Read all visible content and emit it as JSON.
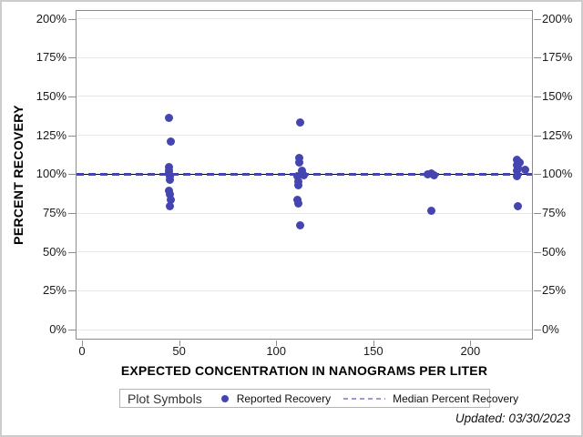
{
  "figure": {
    "footer_updated": "Updated: 03/30/2023"
  },
  "legend": {
    "title": "Plot Symbols",
    "items": [
      {
        "symbol": "filled-circle",
        "label": "Reported Recovery"
      },
      {
        "symbol": "dashed-line",
        "label": "Median Percent Recovery"
      }
    ]
  },
  "chart_data": {
    "type": "scatter",
    "title": "",
    "xlabel": "EXPECTED CONCENTRATION IN NANOGRAMS PER LITER",
    "ylabel": "PERCENT RECOVERY",
    "xlim": [
      -3.3,
      232.2
    ],
    "ylim": [
      -6.4,
      205.6
    ],
    "x_ticks": [
      0,
      50,
      100,
      150,
      200
    ],
    "y_ticks_percent": [
      0,
      25,
      50,
      75,
      100,
      125,
      150,
      175,
      200
    ],
    "y_tick_suffix": "%",
    "grid": "horizontal-only",
    "legend_position": "bottom",
    "y_axis_sides": [
      "left",
      "right"
    ],
    "marker_color": "#4545b2",
    "median_line_color": "#4545b2",
    "legend_dash_color": "#9a9ad4",
    "gridline_color": "#e8e8e8",
    "reference_line": {
      "y": 100,
      "color": "#000000",
      "style": "solid"
    },
    "median_line": {
      "y": 100,
      "style": "dashed",
      "name": "Median Percent Recovery"
    },
    "series": [
      {
        "name": "Reported Recovery",
        "points": [
          {
            "x": 45,
            "y": 136
          },
          {
            "x": 45.5,
            "y": 121
          },
          {
            "x": 45,
            "y": 104.5
          },
          {
            "x": 44.8,
            "y": 102.5
          },
          {
            "x": 45,
            "y": 100.5
          },
          {
            "x": 45.2,
            "y": 98.5
          },
          {
            "x": 45.2,
            "y": 96.5
          },
          {
            "x": 45,
            "y": 89.5
          },
          {
            "x": 45.2,
            "y": 87
          },
          {
            "x": 45.5,
            "y": 83.5
          },
          {
            "x": 45.2,
            "y": 79.5
          },
          {
            "x": 112.5,
            "y": 133
          },
          {
            "x": 112,
            "y": 110.5
          },
          {
            "x": 112,
            "y": 107.5
          },
          {
            "x": 113.5,
            "y": 102
          },
          {
            "x": 114,
            "y": 99.5
          },
          {
            "x": 111,
            "y": 99
          },
          {
            "x": 111.5,
            "y": 95.5
          },
          {
            "x": 111.5,
            "y": 93
          },
          {
            "x": 110.8,
            "y": 83.5
          },
          {
            "x": 111.3,
            "y": 81
          },
          {
            "x": 112.5,
            "y": 67
          },
          {
            "x": 178,
            "y": 100
          },
          {
            "x": 180,
            "y": 100.5
          },
          {
            "x": 181.5,
            "y": 99.5
          },
          {
            "x": 180,
            "y": 76.5
          },
          {
            "x": 224,
            "y": 109
          },
          {
            "x": 225.5,
            "y": 107.5
          },
          {
            "x": 224,
            "y": 106
          },
          {
            "x": 224.3,
            "y": 104
          },
          {
            "x": 228,
            "y": 103
          },
          {
            "x": 224,
            "y": 102
          },
          {
            "x": 224.2,
            "y": 98.5
          },
          {
            "x": 224.3,
            "y": 79.5
          }
        ]
      }
    ]
  }
}
